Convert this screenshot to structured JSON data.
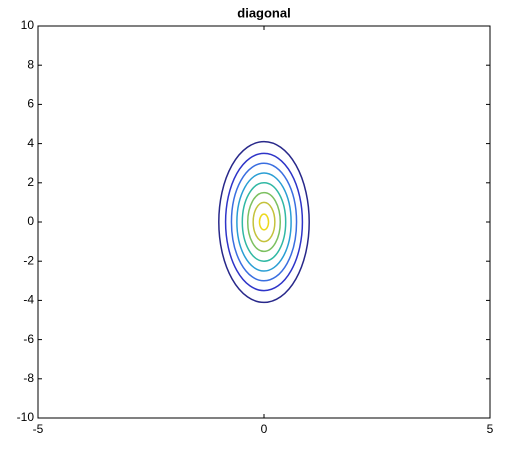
{
  "chart_data": {
    "type": "contour",
    "title": "diagonal",
    "center": [
      0,
      0
    ],
    "contours": [
      {
        "rx": 1.0,
        "ry": 4.1,
        "color": "#28288a"
      },
      {
        "rx": 0.85,
        "ry": 3.5,
        "color": "#2e34c8"
      },
      {
        "rx": 0.72,
        "ry": 3.0,
        "color": "#3a6ee0"
      },
      {
        "rx": 0.6,
        "ry": 2.5,
        "color": "#2a9ed4"
      },
      {
        "rx": 0.48,
        "ry": 2.0,
        "color": "#30b8a4"
      },
      {
        "rx": 0.36,
        "ry": 1.5,
        "color": "#7cc060"
      },
      {
        "rx": 0.24,
        "ry": 1.0,
        "color": "#c4c23c"
      },
      {
        "rx": 0.1,
        "ry": 0.4,
        "color": "#ecd81c"
      }
    ],
    "xlim": [
      -5,
      5
    ],
    "xticks": [
      -5,
      0,
      5
    ],
    "ylim": [
      -10,
      10
    ],
    "yticks": [
      -10,
      -8,
      -6,
      -4,
      -2,
      0,
      2,
      4,
      6,
      8,
      10
    ]
  }
}
